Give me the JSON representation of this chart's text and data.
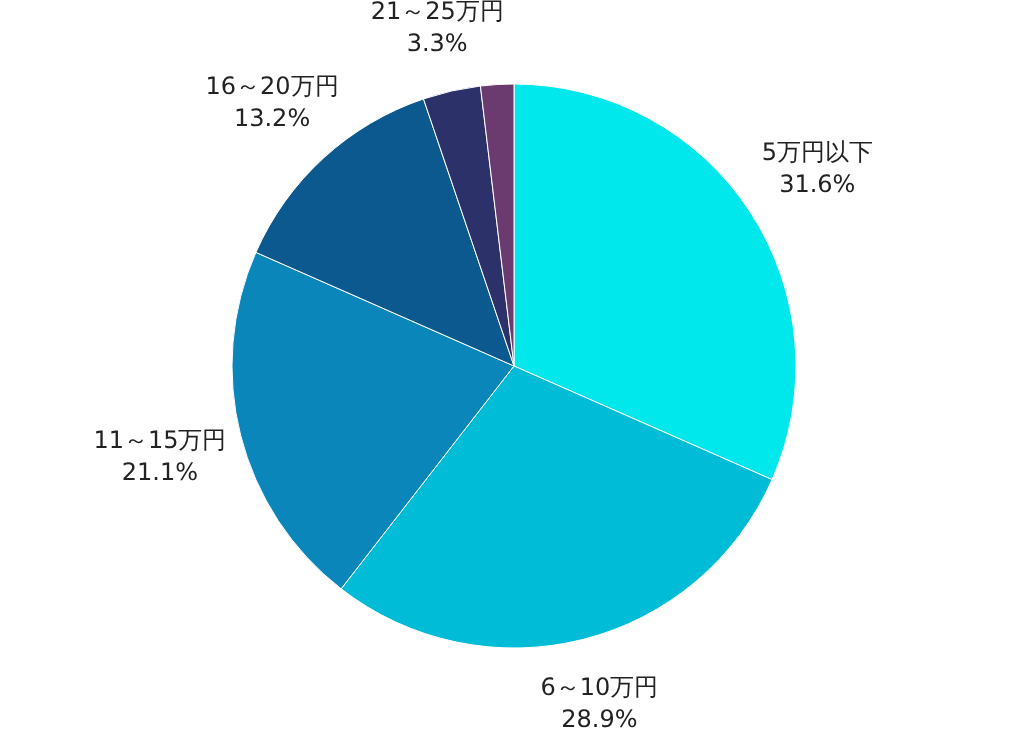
{
  "chart_data": {
    "type": "pie",
    "categories": [
      "5万円以下",
      "6～10万円",
      "11～15万円",
      "16～20万円",
      "21～25万円",
      null
    ],
    "values": [
      31.6,
      28.9,
      21.1,
      13.2,
      3.3,
      1.9
    ],
    "value_labels": [
      "31.6%",
      "28.9%",
      "21.1%",
      "13.2%",
      "3.3%",
      null
    ],
    "colors": [
      "#00e8ec",
      "#00bcd6",
      "#0a86ba",
      "#0b598f",
      "#2d3169",
      "#6b3b70"
    ]
  }
}
